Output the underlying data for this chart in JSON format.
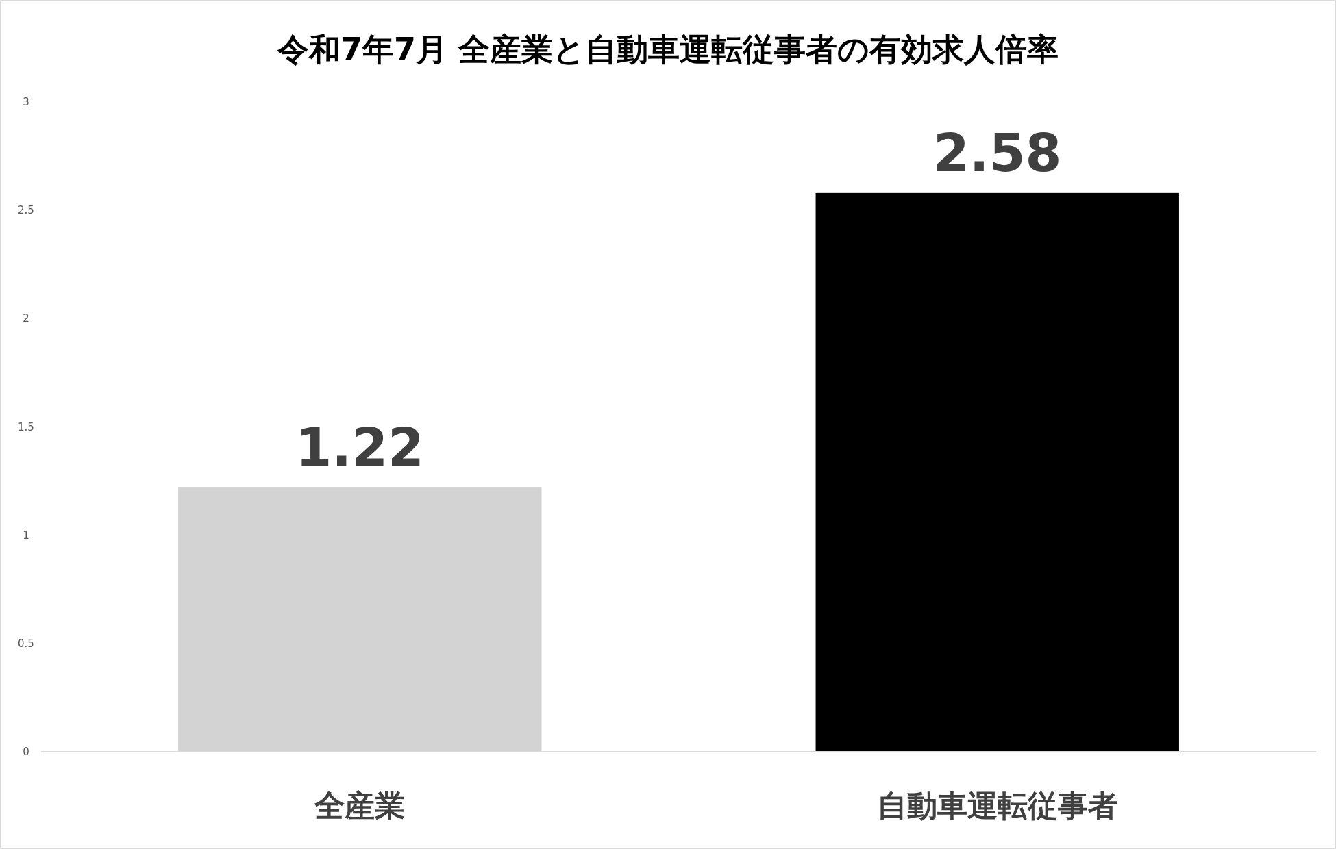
{
  "chart_data": {
    "type": "bar",
    "title": "令和7年7月 全産業と自動車運転従事者の有効求人倍率",
    "categories": [
      "全産業",
      "自動車運転従事者"
    ],
    "values": [
      1.22,
      2.58
    ],
    "colors": [
      "#d3d3d3",
      "#000000"
    ],
    "ylim": [
      0,
      3
    ],
    "yticks": [
      0,
      0.5,
      1,
      1.5,
      2,
      2.5,
      3
    ],
    "data_labels": true,
    "grid": false
  }
}
